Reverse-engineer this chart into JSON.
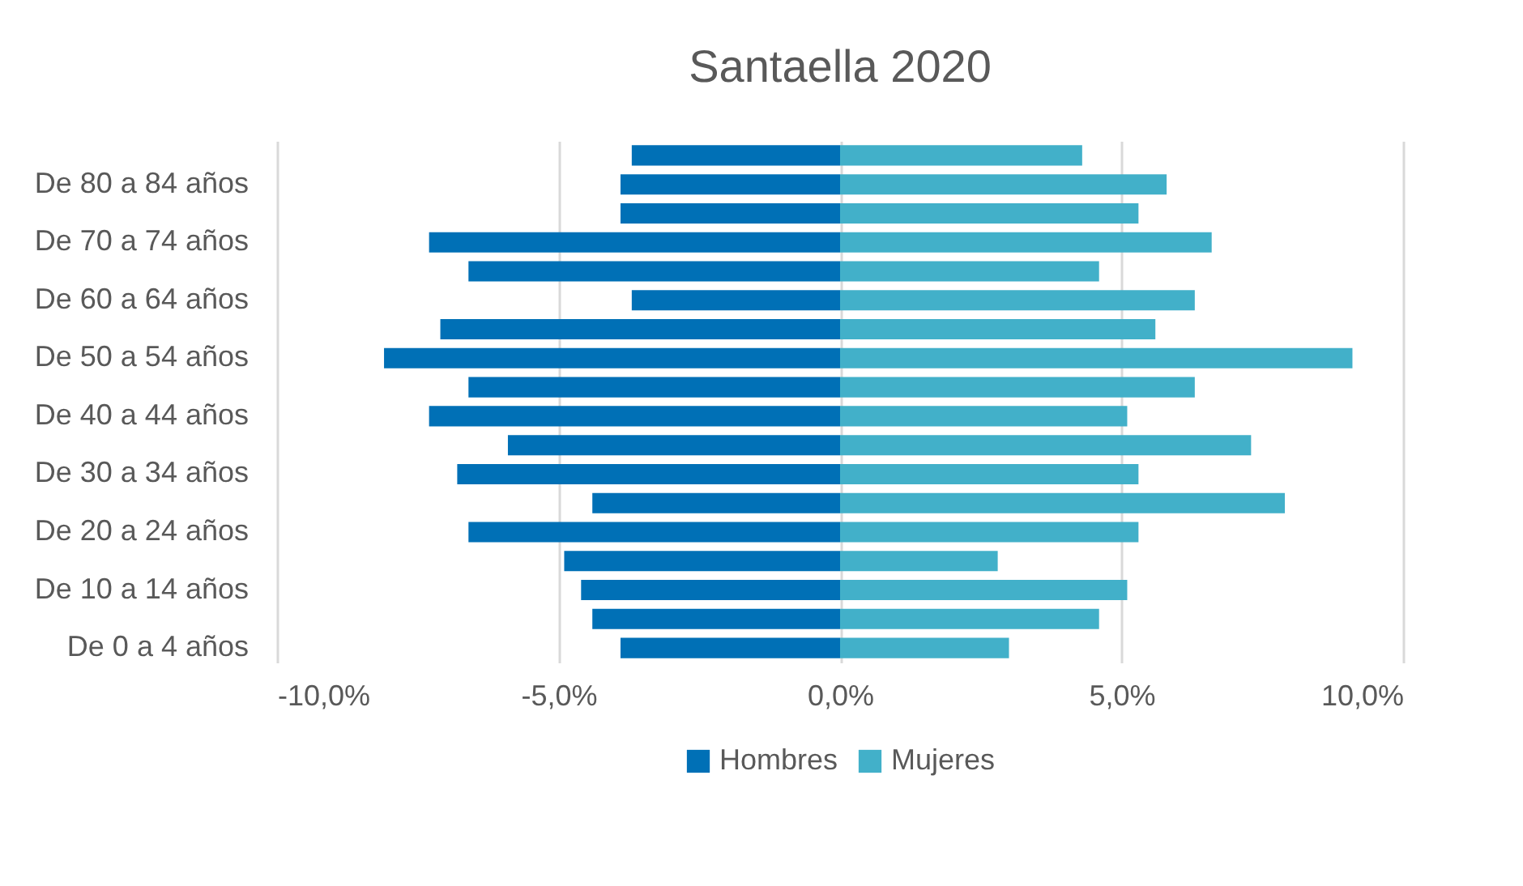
{
  "chart_data": {
    "type": "bar",
    "title": "Santaella 2020",
    "orientation": "horizontal",
    "stacked": true,
    "categories": [
      null,
      "De 80 a 84 años",
      null,
      "De 70 a 74 años",
      null,
      "De 60 a 64 años",
      null,
      "De 50 a 54 años",
      null,
      "De 40 a 44 años",
      null,
      "De 30 a 34 años",
      null,
      "De 20 a 24 años",
      null,
      "De 10 a 14 años",
      null,
      "De 0 a 4 años"
    ],
    "series": [
      {
        "name": "Hombres",
        "color": "#0070b6",
        "values": [
          -3.7,
          -3.9,
          -3.9,
          -7.3,
          -6.6,
          -3.7,
          -7.1,
          -8.1,
          -6.6,
          -7.3,
          -5.9,
          -6.8,
          -4.4,
          -6.6,
          -4.9,
          -4.6,
          -4.4,
          -3.9
        ]
      },
      {
        "name": "Mujeres",
        "color": "#42b0c9",
        "values": [
          4.3,
          5.8,
          5.3,
          6.6,
          4.6,
          6.3,
          5.6,
          9.1,
          6.3,
          5.1,
          7.3,
          5.3,
          7.9,
          5.3,
          2.8,
          5.1,
          4.6,
          3.0
        ]
      }
    ],
    "xlim": [
      -10,
      10
    ],
    "xticks": [
      {
        "value": -10,
        "label": "-10,0%"
      },
      {
        "value": -5,
        "label": "-5,0%"
      },
      {
        "value": 0,
        "label": "0,0%"
      },
      {
        "value": 5,
        "label": "5,0%"
      },
      {
        "value": 10,
        "label": "10,0%"
      }
    ],
    "grid": "x",
    "legend": "bottom"
  }
}
